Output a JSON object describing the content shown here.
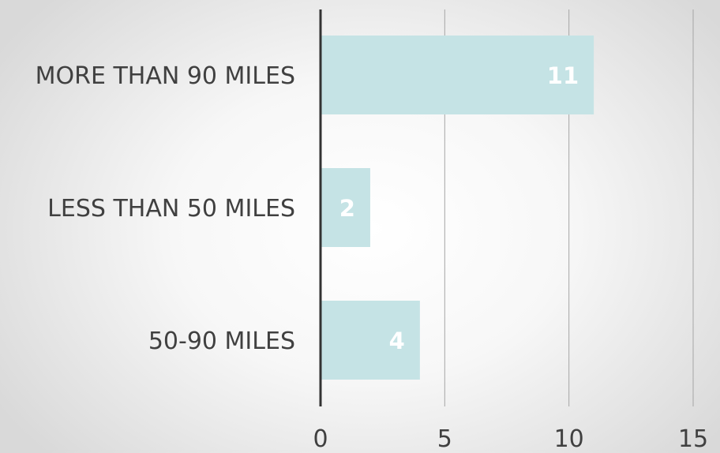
{
  "chart_data": {
    "type": "bar",
    "orientation": "horizontal",
    "categories": [
      "MORE THAN 90 MILES",
      "LESS THAN 50 MILES",
      "50-90 MILES"
    ],
    "values": [
      11,
      2,
      4
    ],
    "data_labels": [
      "11",
      "2",
      "4"
    ],
    "xlim": [
      0,
      15
    ],
    "x_ticks": [
      0,
      5,
      10,
      15
    ],
    "x_tick_labels": [
      "0",
      "5",
      "10",
      "15"
    ],
    "grid": "vertical",
    "legend": "none",
    "colors": {
      "bar": "#c5e3e5",
      "data_label": "#ffffff",
      "axis": "#333333",
      "gridline": "#a6a6a6",
      "text": "#404040"
    }
  }
}
